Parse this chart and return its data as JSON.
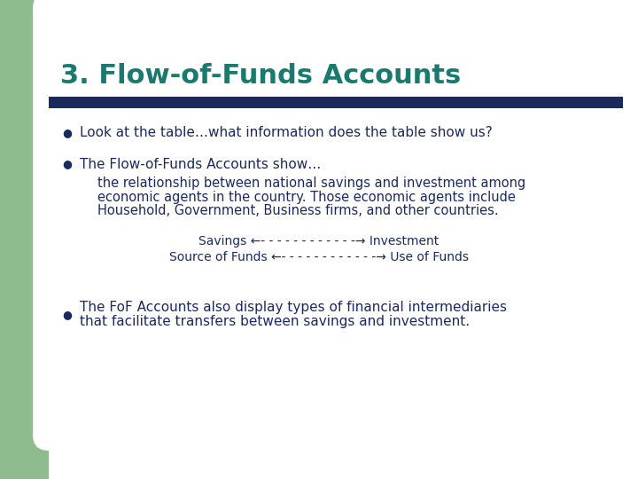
{
  "title": "3. Flow-of-Funds Accounts",
  "title_color": "#1a7a6e",
  "title_fontsize": 22,
  "bg_color": "#ffffff",
  "green_color": "#8fbc8f",
  "navy_bar_color": "#1a2a5e",
  "bullet_color": "#1a2a5e",
  "text_color": "#1a2a5e",
  "bullet1": "Look at the table…what information does the table show us?",
  "bullet2_main": "The Flow-of-Funds Accounts show…",
  "bullet2_sub_line1": "the relationship between national savings and investment among",
  "bullet2_sub_line2": "economic agents in the country. Those economic agents include",
  "bullet2_sub_line3": "Household, Government, Business firms, and other countries.",
  "arrow_line1": "Savings ←- - - - - - - - - - - -→ Investment",
  "arrow_line2": "Source of Funds ←- - - - - - - - - - - -→ Use of Funds",
  "bullet3_line1": "The FoF Accounts also display types of financial intermediaries",
  "bullet3_line2": "that facilitate transfers between savings and investment.",
  "bullet_fontsize": 11,
  "body_fontsize": 11,
  "sub_fontsize": 10.5,
  "arrow_fontsize": 10
}
